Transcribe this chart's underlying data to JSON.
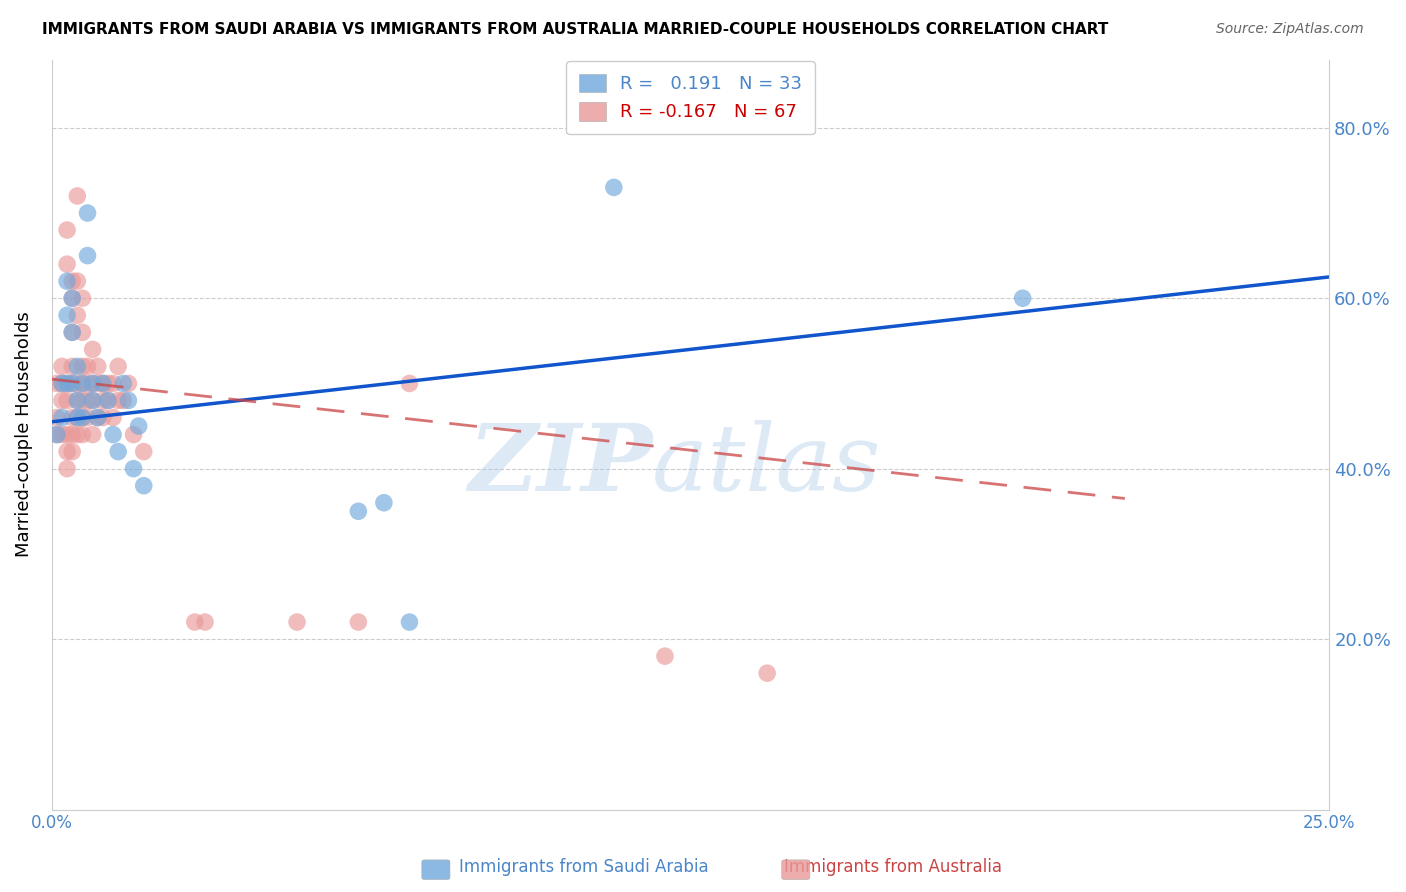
{
  "title": "IMMIGRANTS FROM SAUDI ARABIA VS IMMIGRANTS FROM AUSTRALIA MARRIED-COUPLE HOUSEHOLDS CORRELATION CHART",
  "source": "Source: ZipAtlas.com",
  "ylabel": "Married-couple Households",
  "right_yticks": [
    0.2,
    0.4,
    0.6,
    0.8
  ],
  "right_ytick_labels": [
    "20.0%",
    "40.0%",
    "60.0%",
    "80.0%"
  ],
  "xlim": [
    0.0,
    0.25
  ],
  "ylim": [
    0.0,
    0.88
  ],
  "R_saudi": 0.191,
  "N_saudi": 33,
  "R_australia": -0.167,
  "N_australia": 67,
  "saudi_color": "#6fa8dc",
  "australia_color": "#ea9999",
  "saudi_line": [
    [
      0.0,
      0.455
    ],
    [
      0.25,
      0.625
    ]
  ],
  "australia_line": [
    [
      0.0,
      0.505
    ],
    [
      0.21,
      0.365
    ]
  ],
  "saudi_scatter": [
    [
      0.001,
      0.44
    ],
    [
      0.002,
      0.5
    ],
    [
      0.002,
      0.46
    ],
    [
      0.003,
      0.5
    ],
    [
      0.003,
      0.58
    ],
    [
      0.003,
      0.62
    ],
    [
      0.004,
      0.56
    ],
    [
      0.004,
      0.6
    ],
    [
      0.004,
      0.5
    ],
    [
      0.005,
      0.48
    ],
    [
      0.005,
      0.52
    ],
    [
      0.005,
      0.46
    ],
    [
      0.006,
      0.46
    ],
    [
      0.006,
      0.5
    ],
    [
      0.007,
      0.65
    ],
    [
      0.007,
      0.7
    ],
    [
      0.008,
      0.5
    ],
    [
      0.008,
      0.48
    ],
    [
      0.009,
      0.46
    ],
    [
      0.01,
      0.5
    ],
    [
      0.011,
      0.48
    ],
    [
      0.012,
      0.44
    ],
    [
      0.013,
      0.42
    ],
    [
      0.014,
      0.5
    ],
    [
      0.015,
      0.48
    ],
    [
      0.016,
      0.4
    ],
    [
      0.017,
      0.45
    ],
    [
      0.018,
      0.38
    ],
    [
      0.06,
      0.35
    ],
    [
      0.065,
      0.36
    ],
    [
      0.07,
      0.22
    ],
    [
      0.19,
      0.6
    ],
    [
      0.11,
      0.73
    ]
  ],
  "australia_scatter": [
    [
      0.001,
      0.46
    ],
    [
      0.001,
      0.5
    ],
    [
      0.001,
      0.44
    ],
    [
      0.002,
      0.52
    ],
    [
      0.002,
      0.5
    ],
    [
      0.002,
      0.48
    ],
    [
      0.002,
      0.44
    ],
    [
      0.003,
      0.68
    ],
    [
      0.003,
      0.64
    ],
    [
      0.003,
      0.5
    ],
    [
      0.003,
      0.48
    ],
    [
      0.003,
      0.44
    ],
    [
      0.003,
      0.42
    ],
    [
      0.003,
      0.4
    ],
    [
      0.004,
      0.62
    ],
    [
      0.004,
      0.6
    ],
    [
      0.004,
      0.56
    ],
    [
      0.004,
      0.52
    ],
    [
      0.004,
      0.5
    ],
    [
      0.004,
      0.46
    ],
    [
      0.004,
      0.44
    ],
    [
      0.004,
      0.42
    ],
    [
      0.005,
      0.72
    ],
    [
      0.005,
      0.62
    ],
    [
      0.005,
      0.58
    ],
    [
      0.005,
      0.5
    ],
    [
      0.005,
      0.48
    ],
    [
      0.005,
      0.46
    ],
    [
      0.005,
      0.44
    ],
    [
      0.006,
      0.6
    ],
    [
      0.006,
      0.56
    ],
    [
      0.006,
      0.52
    ],
    [
      0.006,
      0.5
    ],
    [
      0.006,
      0.48
    ],
    [
      0.006,
      0.46
    ],
    [
      0.006,
      0.44
    ],
    [
      0.007,
      0.52
    ],
    [
      0.007,
      0.5
    ],
    [
      0.007,
      0.48
    ],
    [
      0.007,
      0.46
    ],
    [
      0.008,
      0.54
    ],
    [
      0.008,
      0.5
    ],
    [
      0.008,
      0.48
    ],
    [
      0.008,
      0.44
    ],
    [
      0.009,
      0.52
    ],
    [
      0.009,
      0.5
    ],
    [
      0.009,
      0.46
    ],
    [
      0.01,
      0.5
    ],
    [
      0.01,
      0.48
    ],
    [
      0.01,
      0.46
    ],
    [
      0.011,
      0.5
    ],
    [
      0.011,
      0.48
    ],
    [
      0.012,
      0.5
    ],
    [
      0.012,
      0.46
    ],
    [
      0.013,
      0.52
    ],
    [
      0.013,
      0.48
    ],
    [
      0.014,
      0.48
    ],
    [
      0.015,
      0.5
    ],
    [
      0.016,
      0.44
    ],
    [
      0.018,
      0.42
    ],
    [
      0.028,
      0.22
    ],
    [
      0.03,
      0.22
    ],
    [
      0.048,
      0.22
    ],
    [
      0.06,
      0.22
    ],
    [
      0.07,
      0.5
    ],
    [
      0.12,
      0.18
    ],
    [
      0.14,
      0.16
    ]
  ],
  "watermark_zip": "ZIP",
  "watermark_atlas": "atlas",
  "background_color": "#ffffff",
  "grid_color": "#cccccc",
  "tick_color": "#4a86c8",
  "title_fontsize": 11,
  "source_fontsize": 10,
  "legend_fontsize": 13,
  "axis_label_fontsize": 13
}
